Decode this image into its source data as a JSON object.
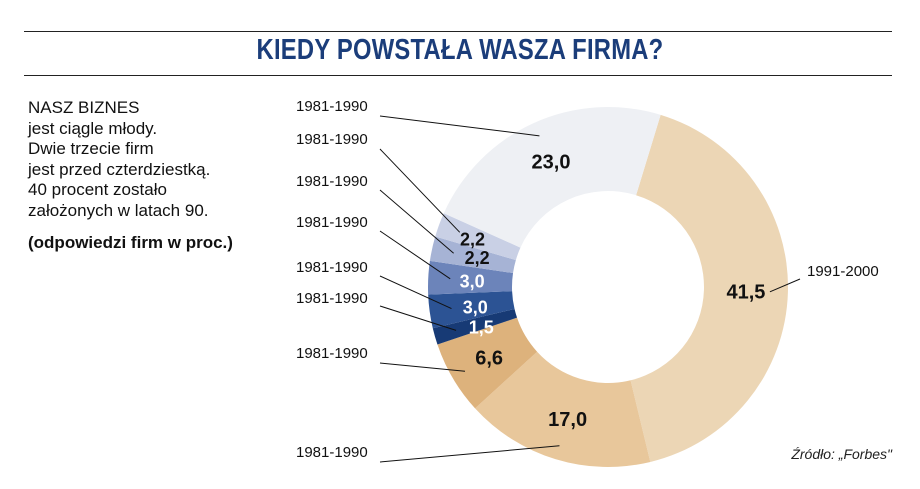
{
  "title": "KIEDY POWSTAŁA WASZA FIRMA?",
  "intro_lines": [
    "NASZ BIZNES",
    "jest ciągle młody.",
    "Dwie trzecie firm",
    "jest przed czterdziestką.",
    "40 procent zostało",
    "założonych w latach 90."
  ],
  "note": "(odpowiedzi firm w proc.)",
  "source": "Źródło: „Forbes\"",
  "chart_data": {
    "type": "pie",
    "variant": "donut",
    "title": "KIEDY POWSTAŁA WASZA FIRMA?",
    "unit": "%",
    "slices": [
      {
        "label": "1991-2000",
        "value": 41.5,
        "value_text": "41,5",
        "color": "#ecd6b5",
        "text_color": "#111111"
      },
      {
        "label": "1981-1990",
        "value": 17.0,
        "value_text": "17,0",
        "color": "#e8c79b",
        "text_color": "#111111"
      },
      {
        "label": "1981-1990",
        "value": 6.6,
        "value_text": "6,6",
        "color": "#ddb27c",
        "text_color": "#111111"
      },
      {
        "label": "1981-1990",
        "value": 1.5,
        "value_text": "1,5",
        "color": "#173a75",
        "text_color": "#ffffff"
      },
      {
        "label": "1981-1990",
        "value": 3.0,
        "value_text": "3,0",
        "color": "#2c5394",
        "text_color": "#ffffff"
      },
      {
        "label": "1981-1990",
        "value": 3.0,
        "value_text": "3,0",
        "color": "#6c84ba",
        "text_color": "#ffffff"
      },
      {
        "label": "1981-1990",
        "value": 2.2,
        "value_text": "2,2",
        "color": "#a6b3d5",
        "text_color": "#111111"
      },
      {
        "label": "1981-1990",
        "value": 2.2,
        "value_text": "2,2",
        "color": "#c9d0e5",
        "text_color": "#111111"
      },
      {
        "label": "1981-1990",
        "value": 23.0,
        "value_text": "23,0",
        "color": "#eef0f4",
        "text_color": "#111111"
      }
    ]
  }
}
